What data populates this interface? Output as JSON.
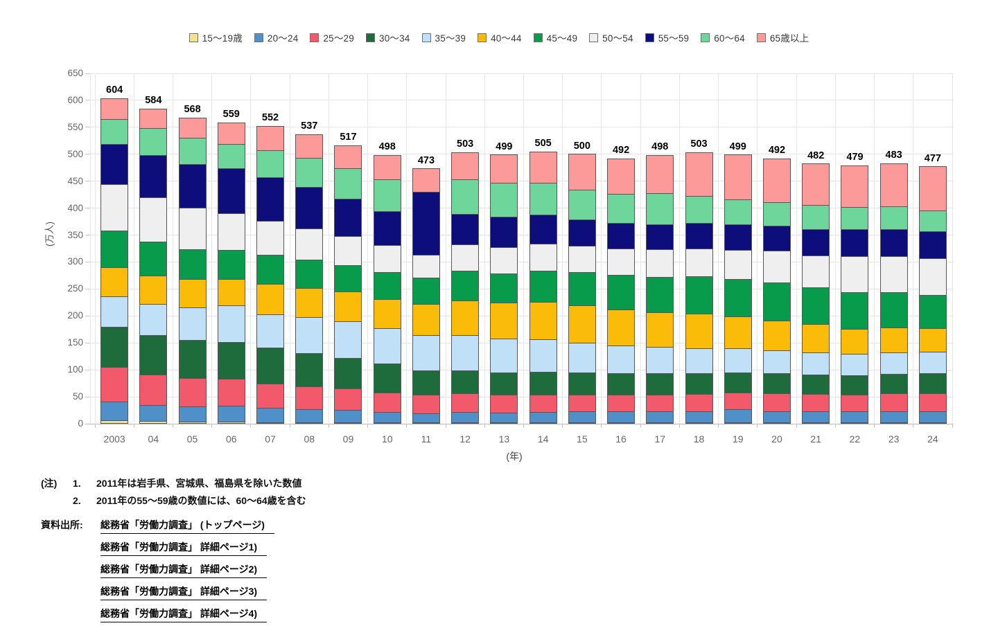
{
  "chart_data": {
    "type": "bar",
    "stacked": true,
    "title": "",
    "ylabel": "(万人)",
    "xlabel": "(年)",
    "ylim": [
      0,
      650
    ],
    "ytick_step": 50,
    "grid": true,
    "legend_position": "top",
    "bar_border_color": "#56565a",
    "categories": [
      "2003",
      "04",
      "05",
      "06",
      "07",
      "08",
      "09",
      "10",
      "11",
      "12",
      "13",
      "14",
      "15",
      "16",
      "17",
      "18",
      "19",
      "20",
      "21",
      "22",
      "23",
      "24"
    ],
    "totals": [
      604,
      584,
      568,
      559,
      552,
      537,
      517,
      498,
      473,
      503,
      499,
      505,
      500,
      492,
      498,
      503,
      499,
      492,
      482,
      479,
      483,
      477
    ],
    "series": [
      {
        "name": "15〜19歳",
        "color": "#F2E394",
        "values": [
          6,
          5,
          4,
          4,
          3,
          3,
          3,
          2,
          2,
          2,
          2,
          2,
          2,
          2,
          2,
          2,
          2,
          2,
          2,
          2,
          2,
          2
        ]
      },
      {
        "name": "20〜24",
        "color": "#4F90C8",
        "values": [
          35,
          30,
          28,
          29,
          27,
          24,
          23,
          19,
          17,
          19,
          18,
          19,
          21,
          20,
          21,
          21,
          24,
          21,
          21,
          20,
          21,
          21
        ]
      },
      {
        "name": "25〜29",
        "color": "#F25A6B",
        "values": [
          64,
          56,
          53,
          50,
          44,
          43,
          39,
          36,
          35,
          35,
          33,
          32,
          30,
          31,
          31,
          32,
          31,
          33,
          32,
          32,
          33,
          33
        ]
      },
      {
        "name": "30〜34",
        "color": "#1E6B3C",
        "values": [
          75,
          73,
          71,
          69,
          67,
          61,
          57,
          54,
          45,
          42,
          42,
          43,
          41,
          40,
          39,
          38,
          37,
          37,
          36,
          35,
          36,
          37
        ]
      },
      {
        "name": "35〜39",
        "color": "#BFE0F6",
        "values": [
          56,
          58,
          60,
          68,
          62,
          67,
          68,
          66,
          65,
          66,
          63,
          60,
          56,
          52,
          49,
          47,
          45,
          43,
          41,
          40,
          40,
          40
        ]
      },
      {
        "name": "40〜44",
        "color": "#FBBC09",
        "values": [
          54,
          53,
          53,
          48,
          57,
          54,
          55,
          54,
          58,
          64,
          66,
          69,
          69,
          67,
          64,
          64,
          59,
          55,
          52,
          47,
          46,
          44
        ]
      },
      {
        "name": "45〜49",
        "color": "#089B4B",
        "values": [
          68,
          63,
          55,
          54,
          53,
          53,
          49,
          50,
          48,
          55,
          54,
          58,
          62,
          64,
          66,
          69,
          70,
          71,
          68,
          68,
          66,
          62
        ]
      },
      {
        "name": "50〜54",
        "color": "#EFEFEF",
        "values": [
          87,
          82,
          77,
          68,
          63,
          57,
          54,
          50,
          43,
          49,
          49,
          50,
          49,
          49,
          51,
          52,
          54,
          58,
          60,
          66,
          66,
          67
        ]
      },
      {
        "name": "55〜59",
        "color": "#0D0D7B",
        "values": [
          74,
          78,
          81,
          84,
          82,
          78,
          69,
          63,
          117,
          57,
          56,
          54,
          49,
          47,
          46,
          47,
          48,
          47,
          49,
          50,
          51,
          50
        ]
      },
      {
        "name": "60〜64",
        "color": "#6ED69B",
        "values": [
          46,
          50,
          49,
          45,
          50,
          54,
          57,
          59,
          0,
          64,
          63,
          59,
          55,
          54,
          58,
          50,
          46,
          44,
          45,
          41,
          42,
          39
        ]
      },
      {
        "name": "65歳以上",
        "color": "#FB9A98",
        "values": [
          39,
          36,
          37,
          40,
          44,
          43,
          43,
          45,
          43,
          50,
          53,
          59,
          66,
          66,
          71,
          81,
          83,
          81,
          76,
          78,
          80,
          82
        ]
      }
    ]
  },
  "notes": {
    "label": "(注)",
    "items": [
      {
        "num": "1.",
        "text": "2011年は岩手県、宮城県、福島県を除いた数値"
      },
      {
        "num": "2.",
        "text": "2011年の55〜59歳の数値には、60〜64歳を含む"
      }
    ]
  },
  "source": {
    "label": "資料出所:",
    "links": [
      "総務省「労働力調査」 (トップページ)",
      "総務省「労働力調査」 詳細ページ1)",
      "総務省「労働力調査」 詳細ページ2)",
      "総務省「労働力調査」 詳細ページ3)",
      "総務省「労働力調査」 詳細ページ4)"
    ]
  }
}
